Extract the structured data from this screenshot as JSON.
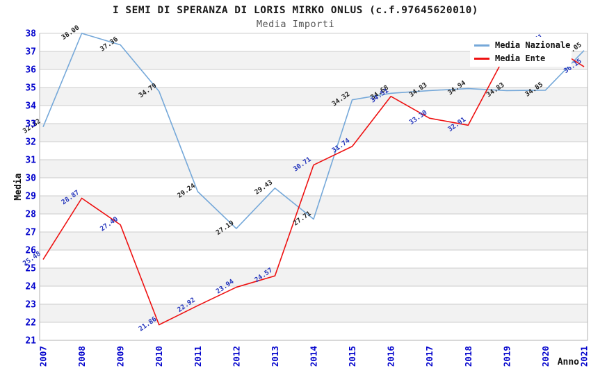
{
  "title": "I SEMI DI SPERANZA DI LORIS MIRKO ONLUS (c.f.97645620010)",
  "subtitle": "Media Importi",
  "legend": [
    {
      "label": "Media Nazionale",
      "color": "#75a8d9"
    },
    {
      "label": "Media Ente",
      "color": "#ee1111"
    }
  ],
  "colors": {
    "tick_label": "#0000cc",
    "grid_line": "#cccccc",
    "band_fill": "#f2f2f2",
    "plot_border": "#b0b0b0",
    "axis_title": "#111111",
    "nazionale_line": "#75a8d9",
    "nazionale_point_label": "#222222",
    "ente_line": "#ee1111",
    "ente_point_label": "#2233bb"
  },
  "chart_data": {
    "type": "line",
    "title": "I SEMI DI SPERANZA DI LORIS MIRKO ONLUS (c.f.97645620010)",
    "subtitle": "Media Importi",
    "xlabel": "Anno",
    "ylabel": "Media",
    "x": [
      2007,
      2008,
      2009,
      2010,
      2011,
      2012,
      2013,
      2014,
      2015,
      2016,
      2017,
      2018,
      2019,
      2020,
      2021
    ],
    "series": [
      {
        "name": "Media Nazionale",
        "color": "#75a8d9",
        "label_color": "#222222",
        "values": [
          32.82,
          38.0,
          37.36,
          34.79,
          29.24,
          27.19,
          29.43,
          27.71,
          34.32,
          34.68,
          34.83,
          34.94,
          34.83,
          34.85,
          37.05
        ]
      },
      {
        "name": "Media Ente",
        "color": "#ee1111",
        "label_color": "#2233bb",
        "values": [
          25.48,
          28.87,
          27.4,
          21.86,
          22.92,
          23.94,
          24.57,
          30.71,
          31.74,
          34.51,
          33.3,
          32.91,
          36.94,
          37.51,
          36.15
        ]
      }
    ],
    "ylim": [
      21,
      38
    ],
    "y_ticks": [
      21,
      22,
      23,
      24,
      25,
      26,
      27,
      28,
      29,
      30,
      31,
      32,
      33,
      34,
      35,
      36,
      37,
      38
    ],
    "x_ticks": [
      "2007",
      "2008",
      "2009",
      "2010",
      "2011",
      "2012",
      "2013",
      "2014",
      "2015",
      "2016",
      "2017",
      "2018",
      "2019",
      "2020",
      "2021"
    ],
    "grid": true,
    "bands": true,
    "legend_position": "top-right"
  }
}
